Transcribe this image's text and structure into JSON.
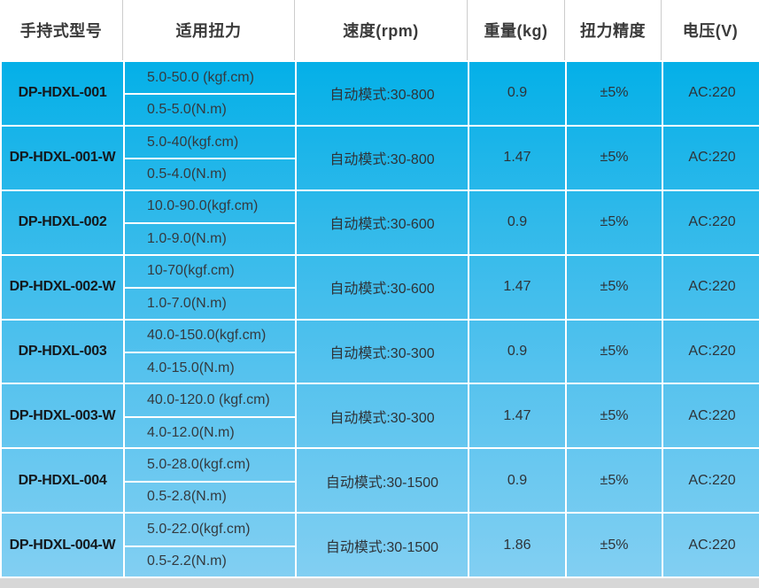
{
  "table": {
    "headers": [
      "手持式型号",
      "适用扭力",
      "速度(rpm)",
      "重量(kg)",
      "扭力精度",
      "电压(V)"
    ],
    "rows": [
      {
        "model": "DP-HDXL-001",
        "torque_kgf": "5.0-50.0 (kgf.cm)",
        "torque_nm": "0.5-5.0(N.m)",
        "speed": "自动模式:30-800",
        "weight": "0.9",
        "accuracy": "±5%",
        "voltage": "AC:220"
      },
      {
        "model": "DP-HDXL-001-W",
        "torque_kgf": "5.0-40(kgf.cm)",
        "torque_nm": "0.5-4.0(N.m)",
        "speed": "自动模式:30-800",
        "weight": "1.47",
        "accuracy": "±5%",
        "voltage": "AC:220"
      },
      {
        "model": "DP-HDXL-002",
        "torque_kgf": "10.0-90.0(kgf.cm)",
        "torque_nm": "1.0-9.0(N.m)",
        "speed": "自动模式:30-600",
        "weight": "0.9",
        "accuracy": "±5%",
        "voltage": "AC:220"
      },
      {
        "model": "DP-HDXL-002-W",
        "torque_kgf": "10-70(kgf.cm)",
        "torque_nm": "1.0-7.0(N.m)",
        "speed": "自动模式:30-600",
        "weight": "1.47",
        "accuracy": "±5%",
        "voltage": "AC:220"
      },
      {
        "model": "DP-HDXL-003",
        "torque_kgf": "40.0-150.0(kgf.cm)",
        "torque_nm": "4.0-15.0(N.m)",
        "speed": "自动模式:30-300",
        "weight": "0.9",
        "accuracy": "±5%",
        "voltage": "AC:220"
      },
      {
        "model": "DP-HDXL-003-W",
        "torque_kgf": "40.0-120.0 (kgf.cm)",
        "torque_nm": "4.0-12.0(N.m)",
        "speed": "自动模式:30-300",
        "weight": "1.47",
        "accuracy": "±5%",
        "voltage": "AC:220"
      },
      {
        "model": "DP-HDXL-004",
        "torque_kgf": "5.0-28.0(kgf.cm)",
        "torque_nm": "0.5-2.8(N.m)",
        "speed": "自动模式:30-1500",
        "weight": "0.9",
        "accuracy": "±5%",
        "voltage": "AC:220"
      },
      {
        "model": "DP-HDXL-004-W",
        "torque_kgf": "5.0-22.0(kgf.cm)",
        "torque_nm": "0.5-2.2(N.m)",
        "speed": "自动模式:30-1500",
        "weight": "1.86",
        "accuracy": "±5%",
        "voltage": "AC:220"
      }
    ],
    "colors": {
      "gradient_top": "#04b0e8",
      "gradient_bottom": "#82cff2",
      "cell_border": "#ffffff",
      "header_bg": "#ffffff",
      "header_separator": "#cccccc",
      "header_text": "#3a3a3a",
      "cell_text": "#2e3338",
      "bottom_strip": "#d7d7d7"
    }
  }
}
